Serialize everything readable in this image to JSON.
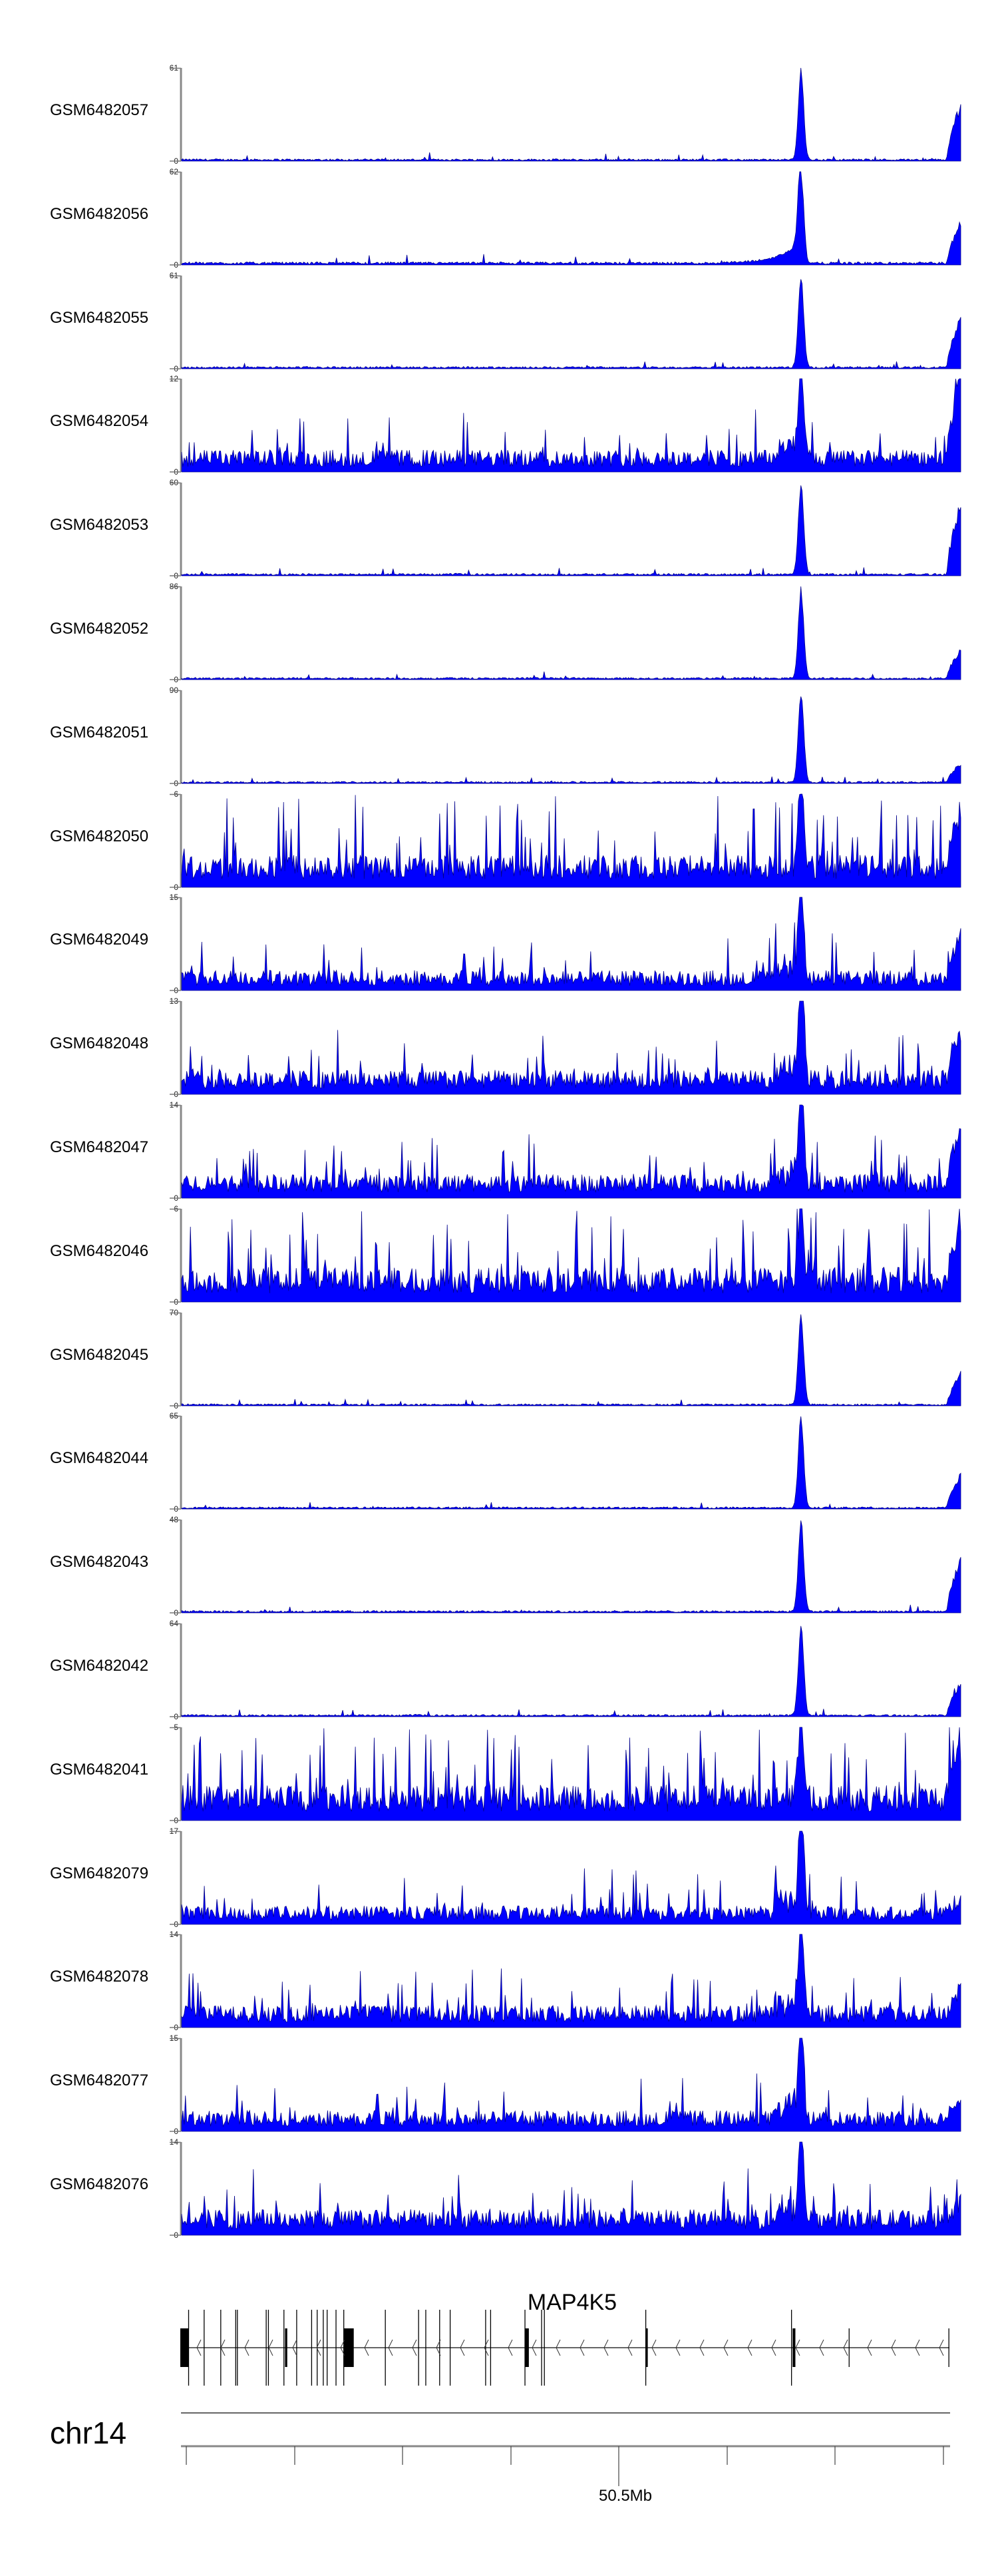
{
  "chart_data": {
    "type": "area",
    "title": "",
    "chromosome": "chr14",
    "gene": "MAP4K5",
    "gene_strand": "-",
    "x_axis_label": "50.5Mb",
    "fill_color": "#0000ff",
    "outline_color": "#00008b",
    "series": [
      {
        "name": "GSM6482057",
        "ymin": 0,
        "ymax": 61,
        "mode": "peak",
        "base": 1.5,
        "peak": 61,
        "end_peak": 40
      },
      {
        "name": "GSM6482056",
        "ymin": 0,
        "ymax": 62,
        "mode": "peak",
        "base": 2,
        "peak": 62,
        "end_peak": 30,
        "shoulder": true
      },
      {
        "name": "GSM6482055",
        "ymin": 0,
        "ymax": 61,
        "mode": "peak",
        "base": 1.5,
        "peak": 61,
        "end_peak": 36
      },
      {
        "name": "GSM6482054",
        "ymin": 0,
        "ymax": 12,
        "mode": "noisy-peak",
        "base": 2.2,
        "peak": 12,
        "end_peak": 12
      },
      {
        "name": "GSM6482053",
        "ymin": 0,
        "ymax": 60,
        "mode": "peak",
        "base": 1.5,
        "peak": 60,
        "end_peak": 50
      },
      {
        "name": "GSM6482052",
        "ymin": 0,
        "ymax": 86,
        "mode": "peak",
        "base": 2,
        "peak": 86,
        "end_peak": 30
      },
      {
        "name": "GSM6482051",
        "ymin": 0,
        "ymax": 90,
        "mode": "peak",
        "base": 2,
        "peak": 90,
        "end_peak": 20
      },
      {
        "name": "GSM6482050",
        "ymin": 0,
        "ymax": 6,
        "mode": "noise",
        "base": 1.3,
        "peak": 6,
        "end_peak": 4
      },
      {
        "name": "GSM6482049",
        "ymin": 0,
        "ymax": 15,
        "mode": "noisy-peak",
        "base": 2.5,
        "peak": 15,
        "end_peak": 8
      },
      {
        "name": "GSM6482048",
        "ymin": 0,
        "ymax": 13,
        "mode": "noisy-peak",
        "base": 2.6,
        "peak": 13,
        "end_peak": 7
      },
      {
        "name": "GSM6482047",
        "ymin": 0,
        "ymax": 14,
        "mode": "noisy-peak",
        "base": 2.8,
        "peak": 14,
        "end_peak": 9
      },
      {
        "name": "GSM6482046",
        "ymin": 0,
        "ymax": 6,
        "mode": "noise",
        "base": 1.4,
        "peak": 6,
        "end_peak": 4
      },
      {
        "name": "GSM6482045",
        "ymin": 0,
        "ymax": 70,
        "mode": "peak",
        "base": 1.5,
        "peak": 70,
        "end_peak": 25
      },
      {
        "name": "GSM6482044",
        "ymin": 0,
        "ymax": 65,
        "mode": "peak",
        "base": 1.5,
        "peak": 65,
        "end_peak": 25
      },
      {
        "name": "GSM6482043",
        "ymin": 0,
        "ymax": 48,
        "mode": "peak",
        "base": 1.2,
        "peak": 48,
        "end_peak": 30
      },
      {
        "name": "GSM6482042",
        "ymin": 0,
        "ymax": 64,
        "mode": "peak",
        "base": 1.5,
        "peak": 64,
        "end_peak": 25
      },
      {
        "name": "GSM6482041",
        "ymin": 0,
        "ymax": 5,
        "mode": "noise",
        "base": 1.2,
        "peak": 5,
        "end_peak": 3
      },
      {
        "name": "GSM6482079",
        "ymin": 0,
        "ymax": 17,
        "mode": "noisy-peak",
        "base": 2.6,
        "peak": 17,
        "end_peak": 3
      },
      {
        "name": "GSM6482078",
        "ymin": 0,
        "ymax": 14,
        "mode": "noisy-peak",
        "base": 2.6,
        "peak": 14,
        "end_peak": 4
      },
      {
        "name": "GSM6482077",
        "ymin": 0,
        "ymax": 15,
        "mode": "noisy-peak",
        "base": 2.6,
        "peak": 15,
        "end_peak": 4
      },
      {
        "name": "GSM6482076",
        "ymin": 0,
        "ymax": 14,
        "mode": "noisy-peak",
        "base": 3,
        "peak": 14,
        "end_peak": 3
      }
    ]
  }
}
